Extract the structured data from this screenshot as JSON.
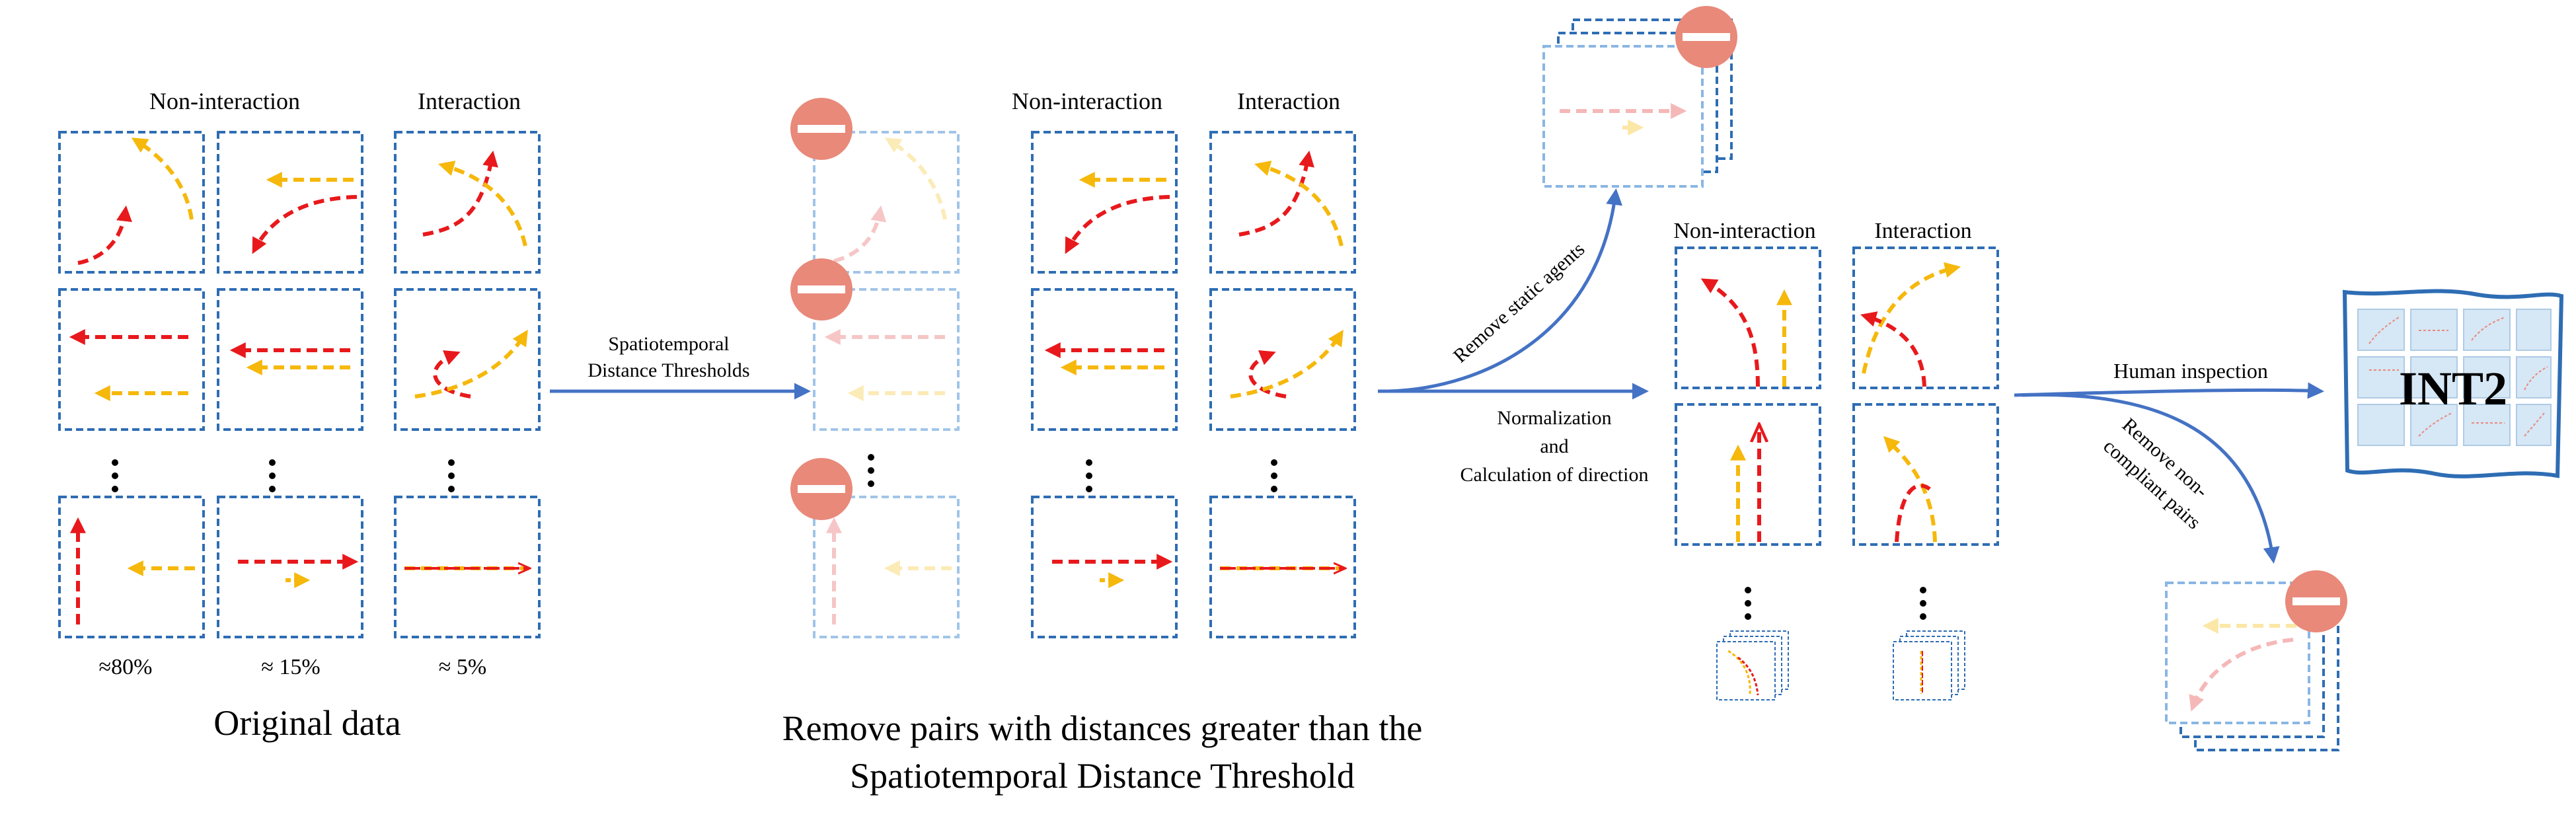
{
  "colors": {
    "panel_border": "#2e6db4",
    "panel_border_faded": "#8ab6e3",
    "red_path": "#e8191c",
    "yellow_path": "#f5b80b",
    "red_faded": "#f5b8b8",
    "yellow_faded": "#fbe7a6",
    "arrow_blue": "#4472c4",
    "remove_badge": "#e8897a",
    "grid_fill": "#d6e7f5"
  },
  "icons": {
    "remove": "minus-circle-icon",
    "dots": "vertical-ellipsis-icon"
  },
  "stage1": {
    "title": "Original data",
    "col_non_interaction": "Non-interaction",
    "col_interaction": "Interaction",
    "pct_1": "≈80%",
    "pct_2": "≈ 15%",
    "pct_3": "≈ 5%"
  },
  "arrow1": {
    "label_line1": "Spatiotemporal",
    "label_line2": "Distance Thresholds"
  },
  "stage2": {
    "title_line1": "Remove pairs with distances greater than the",
    "title_line2": "Spatiotemporal Distance Threshold",
    "col_non_interaction": "Non-interaction",
    "col_interaction": "Interaction"
  },
  "arrow2": {
    "up_label": "Remove static agents",
    "label_line1": "Normalization",
    "label_line2": "and",
    "label_line3": "Calculation of direction"
  },
  "stage3": {
    "col_non_interaction": "Non-interaction",
    "col_interaction": "Interaction"
  },
  "arrow3": {
    "label": "Human inspection",
    "down_label_line1": "Remove non-",
    "down_label_line2": "compliant pairs"
  },
  "final": {
    "label": "INT2"
  }
}
